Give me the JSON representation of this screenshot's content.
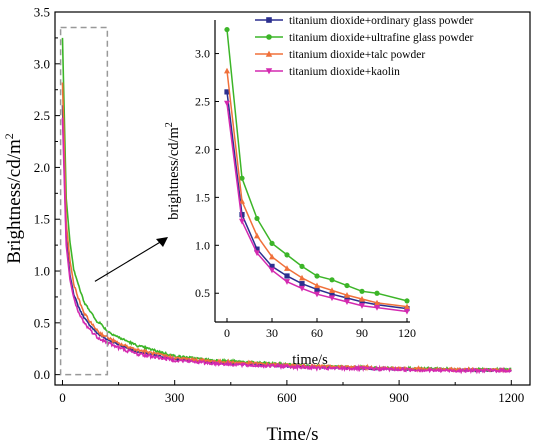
{
  "chart_data": {
    "type": "line",
    "xlabel": "Time/s",
    "ylabel_base": "Brightness/cd/m",
    "ylabel_sup": "2",
    "xlim": [
      -20,
      1250
    ],
    "ylim": [
      -0.1,
      3.5
    ],
    "xticks": [
      0,
      300,
      600,
      900,
      1200
    ],
    "yticks": [
      0.0,
      0.5,
      1.0,
      1.5,
      2.0,
      2.5,
      3.0,
      3.5
    ],
    "tick_labels_y": [
      "0.0",
      "0.5",
      "1.0",
      "1.5",
      "2.0",
      "2.5",
      "3.0",
      "3.5"
    ],
    "grid": false,
    "legend_position": "top-right",
    "zoom_box": {
      "x": [
        -5,
        120
      ],
      "y": [
        0.0,
        3.35
      ]
    },
    "series": [
      {
        "name": "titanium dioxide+ordinary glass powder",
        "color": "#2b2f8f",
        "marker": "square",
        "x": [
          0,
          10,
          20,
          30,
          40,
          50,
          60,
          70,
          80,
          90,
          100,
          120,
          150,
          200,
          300,
          400,
          500,
          600,
          700,
          800,
          900,
          1000,
          1100,
          1200
        ],
        "y": [
          2.6,
          1.32,
          0.96,
          0.78,
          0.68,
          0.6,
          0.54,
          0.49,
          0.45,
          0.41,
          0.38,
          0.34,
          0.29,
          0.22,
          0.15,
          0.12,
          0.1,
          0.08,
          0.07,
          0.06,
          0.05,
          0.05,
          0.04,
          0.04
        ]
      },
      {
        "name": "titanium dioxide+ultrafine glass powder",
        "color": "#3cb528",
        "marker": "circle",
        "x": [
          0,
          10,
          20,
          30,
          40,
          50,
          60,
          70,
          80,
          90,
          100,
          120,
          150,
          200,
          300,
          400,
          500,
          600,
          700,
          800,
          900,
          1000,
          1100,
          1200
        ],
        "y": [
          3.25,
          1.7,
          1.28,
          1.02,
          0.9,
          0.78,
          0.68,
          0.64,
          0.58,
          0.52,
          0.5,
          0.42,
          0.36,
          0.28,
          0.18,
          0.14,
          0.12,
          0.1,
          0.08,
          0.07,
          0.06,
          0.06,
          0.05,
          0.05
        ]
      },
      {
        "name": "titanium dioxide+talc powder",
        "color": "#f0703a",
        "marker": "triangle-up",
        "x": [
          0,
          10,
          20,
          30,
          40,
          50,
          60,
          70,
          80,
          90,
          100,
          120,
          150,
          200,
          300,
          400,
          500,
          600,
          700,
          800,
          900,
          1000,
          1100,
          1200
        ],
        "y": [
          2.82,
          1.46,
          1.1,
          0.88,
          0.76,
          0.66,
          0.58,
          0.53,
          0.48,
          0.44,
          0.4,
          0.36,
          0.3,
          0.24,
          0.16,
          0.13,
          0.11,
          0.09,
          0.08,
          0.07,
          0.06,
          0.05,
          0.05,
          0.04
        ]
      },
      {
        "name": "titanium dioxide+kaolin",
        "color": "#d42ab0",
        "marker": "triangle-down",
        "x": [
          0,
          10,
          20,
          30,
          40,
          50,
          60,
          70,
          80,
          90,
          100,
          120,
          150,
          200,
          300,
          400,
          500,
          600,
          700,
          800,
          900,
          1000,
          1100,
          1200
        ],
        "y": [
          2.48,
          1.25,
          0.92,
          0.74,
          0.62,
          0.55,
          0.49,
          0.45,
          0.41,
          0.37,
          0.35,
          0.31,
          0.26,
          0.2,
          0.14,
          0.11,
          0.09,
          0.08,
          0.06,
          0.06,
          0.05,
          0.04,
          0.04,
          0.04
        ]
      }
    ],
    "inset": {
      "xlabel": "time/s",
      "ylabel_base": "brightness/cd/m",
      "ylabel_sup": "2",
      "xlim": [
        -8,
        122
      ],
      "ylim": [
        0.2,
        3.35
      ],
      "xticks": [
        0,
        30,
        60,
        90,
        120
      ],
      "yticks": [
        0.5,
        1.0,
        1.5,
        2.0,
        2.5,
        3.0
      ],
      "tick_labels_y": [
        "0.5",
        "1.0",
        "1.5",
        "2.0",
        "2.5",
        "3.0"
      ]
    }
  }
}
